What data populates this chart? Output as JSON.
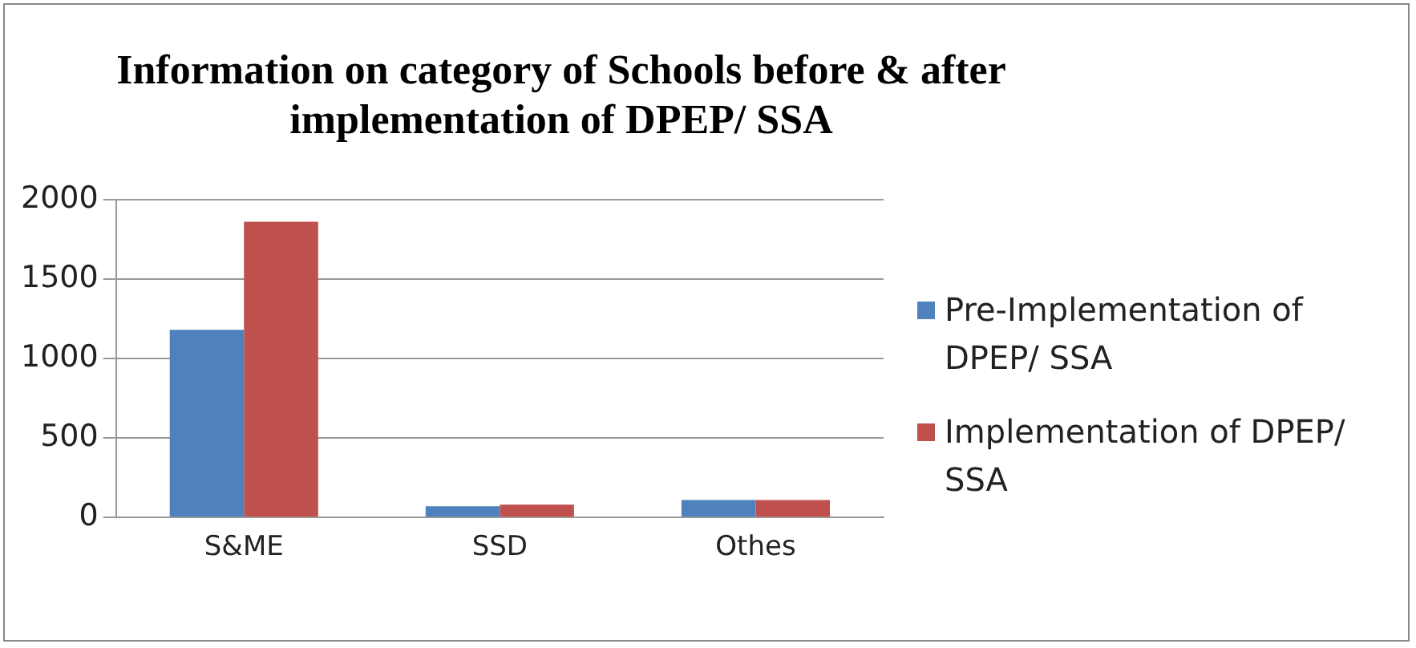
{
  "chart_data": {
    "type": "bar",
    "title": "Information on category of Schools before & after implementation of DPEP/ SSA",
    "categories": [
      "S&ME",
      "SSD",
      "Othes"
    ],
    "series": [
      {
        "name": "Pre-Implementation of DPEP/ SSA",
        "color": "#4f81bd",
        "values": [
          1180,
          70,
          110
        ]
      },
      {
        "name": "Implementation of DPEP/ SSA",
        "color": "#c0504d",
        "values": [
          1860,
          80,
          110
        ]
      }
    ],
    "ylim": [
      0,
      2000
    ],
    "yticks": [
      0,
      500,
      1000,
      1500,
      2000
    ],
    "grid": "y",
    "legend": "right"
  }
}
